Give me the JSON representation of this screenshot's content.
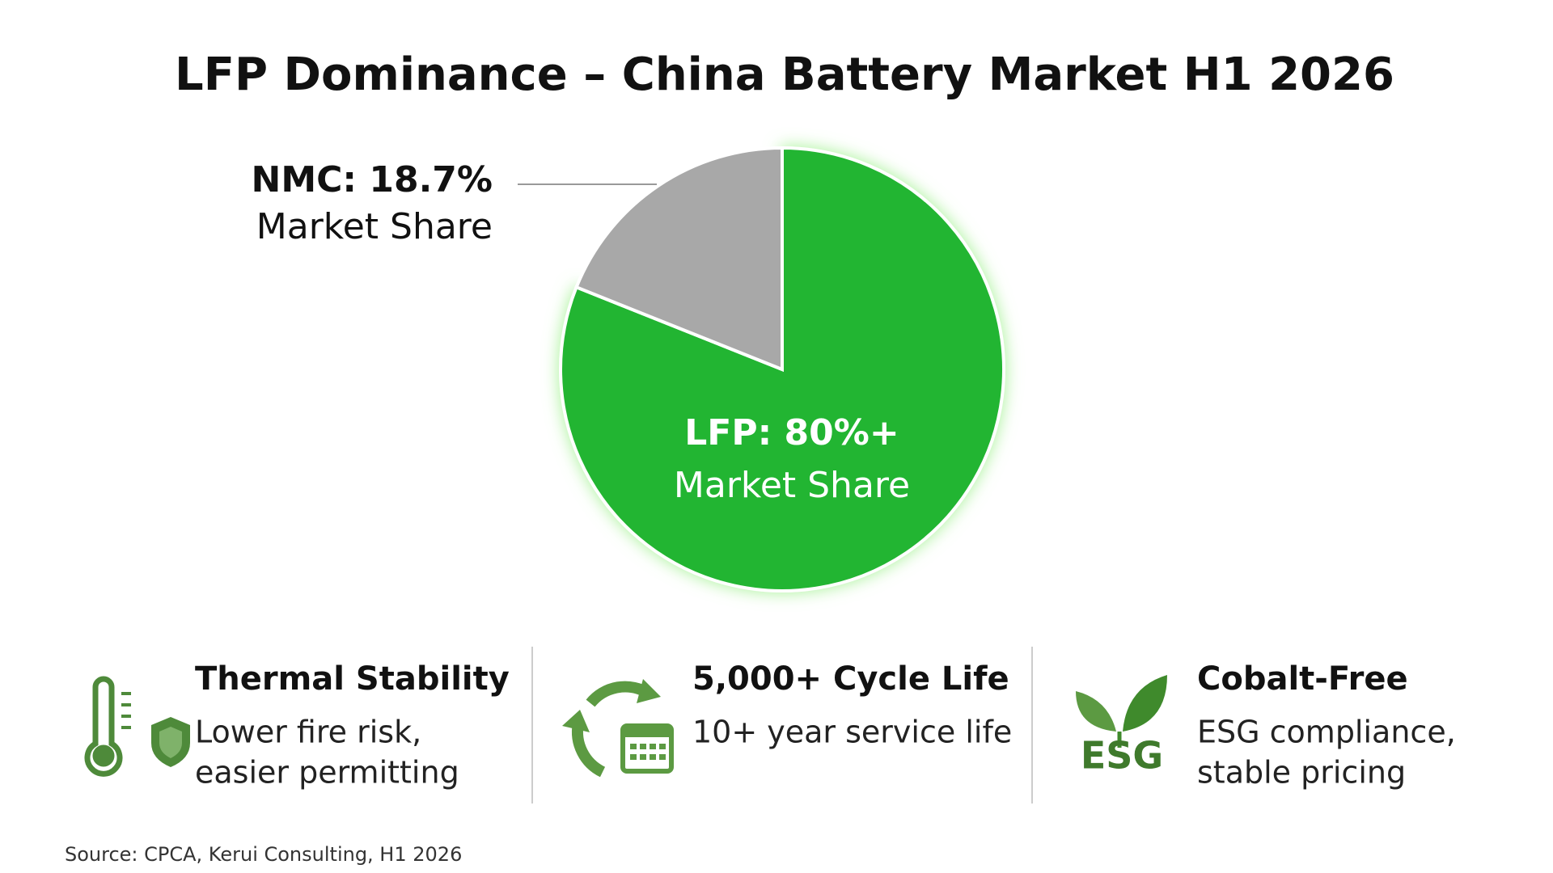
{
  "chart_data": {
    "type": "pie",
    "title": "LFP Dominance – China Battery Market H1 2026",
    "categories": [
      "LFP",
      "NMC"
    ],
    "values": [
      80,
      18.7
    ],
    "value_labels": [
      "LFP: 80%+",
      "NMC: 18.7%"
    ],
    "value_sublabels": [
      "Market Share",
      "Market Share"
    ],
    "colors": [
      "#22b531",
      "#a8a8a8"
    ]
  },
  "features": [
    {
      "title": "Thermal Stability",
      "text_lines": [
        "Lower fire risk,",
        "easier permitting"
      ]
    },
    {
      "title": "5,000+ Cycle Life",
      "text_lines": [
        "10+ year service life"
      ]
    },
    {
      "title": "Cobalt-Free",
      "text_lines": [
        "ESG compliance,",
        "stable pricing"
      ],
      "icon_text": "ESG"
    }
  ],
  "source": "Source: CPCA, Kerui Consulting, H1 2026"
}
